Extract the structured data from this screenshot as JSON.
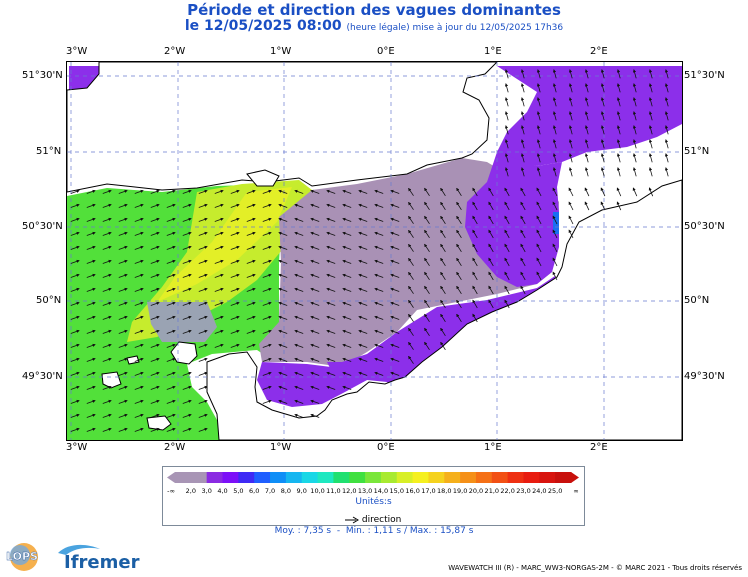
{
  "header": {
    "title": "Période et direction des vagues dominantes",
    "date_line": "le 12/05/2025 08:00",
    "update_note": "(heure légale) mise à jour du 12/05/2025 17h36"
  },
  "map": {
    "lon_ticks": [
      "3°W",
      "2°W",
      "1°W",
      "0°E",
      "1°E",
      "2°E"
    ],
    "lat_ticks": [
      "51°30'N",
      "51°N",
      "50°30'N",
      "50°N",
      "49°30'N"
    ],
    "land_color": "#ffffff",
    "grid_style": "dashed"
  },
  "legend": {
    "low_label": "-∞",
    "high_label": "∞",
    "labels": [
      "2,0",
      "3,0",
      "4,0",
      "5,0",
      "6,0",
      "7,0",
      "8,0",
      "9,0",
      "10,0",
      "11,0",
      "12,0",
      "13,0",
      "14,0",
      "15,0",
      "16,0",
      "17,0",
      "18,0",
      "19,0",
      "20,0",
      "21,0",
      "22,0",
      "23,0",
      "24,0",
      "25,0"
    ],
    "colors": [
      "#a895b5",
      "#a895b5",
      "#8a2be2",
      "#7c10f8",
      "#3f2af5",
      "#1f5fff",
      "#0f8ef7",
      "#16b6f0",
      "#19d7e6",
      "#1ee8c0",
      "#20e070",
      "#40e040",
      "#7ae63a",
      "#a8ea30",
      "#d8ef27",
      "#f5f020",
      "#f5d21e",
      "#f5b01c",
      "#f59018",
      "#f57016",
      "#f25014",
      "#ee3012",
      "#e81c10",
      "#d8140e",
      "#c8100c"
    ],
    "units": "Unités:s",
    "direction_label": "direction"
  },
  "stats": {
    "moy": "Moy. : 7,35 s",
    "min": "Min. : 1,11 s",
    "max": "Max. : 15,87 s",
    "separator": "-",
    "separator2": "/"
  },
  "footer": "WAVEWATCH III (R) - MARC_WW3-NORGAS-2M - © MARC 2021 - Tous droits réservés",
  "logos": {
    "lops": "LOPS",
    "ifremer": "Ifremer"
  }
}
